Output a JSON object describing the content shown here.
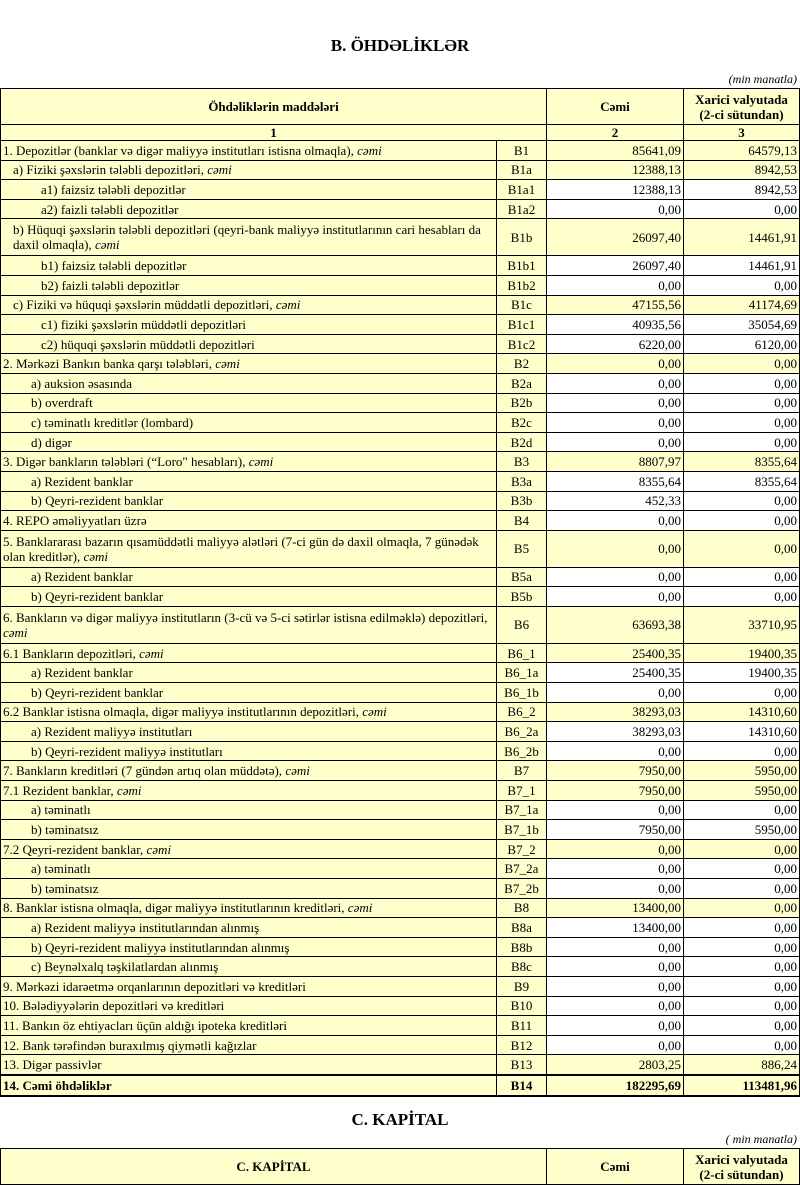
{
  "section_b": {
    "title": "B. ÖHDƏLİKLƏR",
    "unit": "(min manatla)",
    "headers": {
      "items": "Öhdəliklərin maddələri",
      "total": "Cəmi",
      "foreign": "Xarici valyutada (2-ci sütundan)",
      "n1": "1",
      "n2": "2",
      "n3": "3"
    },
    "rows": [
      {
        "label": "1. Depozitlər (banklar və digər maliyyə institutları istisna olmaqla), ",
        "suffix": "cəmi",
        "code": "B1",
        "total": "85641,09",
        "foreign": "64579,13",
        "level": 0,
        "highlight": true
      },
      {
        "label": "a)  Fiziki şəxslərin tələbli depozitləri, ",
        "suffix": "cəmi",
        "code": "B1a",
        "total": "12388,13",
        "foreign": "8942,53",
        "level": 1,
        "highlight": true
      },
      {
        "label": "a1) faizsiz tələbli depozitlər",
        "suffix": "",
        "code": "B1a1",
        "total": "12388,13",
        "foreign": "8942,53",
        "level": 2,
        "highlight": false
      },
      {
        "label": "a2) faizli tələbli depozitlər",
        "suffix": "",
        "code": "B1a2",
        "total": "0,00",
        "foreign": "0,00",
        "level": 2,
        "highlight": false
      },
      {
        "label": "b) Hüquqi şəxslərin tələbli depozitləri (qeyri-bank maliyyə institutlarının cari hesabları da daxil olmaqla), ",
        "suffix": "cəmi",
        "code": "B1b",
        "total": "26097,40",
        "foreign": "14461,91",
        "level": 1,
        "highlight": true,
        "double": true
      },
      {
        "label": "b1) faizsiz tələbli depozitlər",
        "suffix": "",
        "code": "B1b1",
        "total": "26097,40",
        "foreign": "14461,91",
        "level": 2,
        "highlight": false
      },
      {
        "label": "b2) faizli tələbli depozitlər",
        "suffix": "",
        "code": "B1b2",
        "total": "0,00",
        "foreign": "0,00",
        "level": 2,
        "highlight": false
      },
      {
        "label": "c) Fiziki və hüquqi şəxslərin müddətli depozitləri, ",
        "suffix": "cəmi",
        "code": "B1c",
        "total": "47155,56",
        "foreign": "41174,69",
        "level": 1,
        "highlight": true
      },
      {
        "label": "c1) fiziki şəxslərin müddətli depozitləri",
        "suffix": "",
        "code": "B1c1",
        "total": "40935,56",
        "foreign": "35054,69",
        "level": 2,
        "highlight": false
      },
      {
        "label": "c2) hüquqi şəxslərin müddətli depozitləri",
        "suffix": "",
        "code": "B1c2",
        "total": "6220,00",
        "foreign": "6120,00",
        "level": 2,
        "highlight": false
      },
      {
        "label": "2. Mərkəzi Bankın banka qarşı tələbləri, ",
        "suffix": "cəmi",
        "code": "B2",
        "total": "0,00",
        "foreign": "0,00",
        "level": 0,
        "highlight": true
      },
      {
        "label": "a) auksion əsasında",
        "suffix": "",
        "code": "B2a",
        "total": "0,00",
        "foreign": "0,00",
        "level": 1,
        "highlight": false
      },
      {
        "label": "b) overdraft",
        "suffix": "",
        "code": "B2b",
        "total": "0,00",
        "foreign": "0,00",
        "level": 1,
        "highlight": false
      },
      {
        "label": "c) təminatlı kreditlər (lombard)",
        "suffix": "",
        "code": "B2c",
        "total": "0,00",
        "foreign": "0,00",
        "level": 1,
        "highlight": false
      },
      {
        "label": "d) digər",
        "suffix": "",
        "code": "B2d",
        "total": "0,00",
        "foreign": "0,00",
        "level": 1,
        "highlight": false
      },
      {
        "label": "3. Digər bankların tələbləri (“Loro\" hesabları), ",
        "suffix": "cəmi",
        "code": "B3",
        "total": "8807,97",
        "foreign": "8355,64",
        "level": 0,
        "highlight": true
      },
      {
        "label": "a) Rezident banklar",
        "suffix": "",
        "code": "B3a",
        "total": "8355,64",
        "foreign": "8355,64",
        "level": 1,
        "highlight": false
      },
      {
        "label": "b) Qeyri-rezident banklar",
        "suffix": "",
        "code": "B3b",
        "total": "452,33",
        "foreign": "0,00",
        "level": 1,
        "highlight": false
      },
      {
        "label": "4. REPO əməliyyatları  üzrə",
        "suffix": "",
        "code": "B4",
        "total": "0,00",
        "foreign": "0,00",
        "level": 0,
        "highlight": false
      },
      {
        "label": "5. Banklararası bazarın qısamüddətli maliyyə alətləri (7-ci gün də daxil olmaqla, 7 günədək olan kreditlər), ",
        "suffix": "cəmi",
        "code": "B5",
        "total": "0,00",
        "foreign": "0,00",
        "level": 0,
        "highlight": true,
        "double": true
      },
      {
        "label": "a) Rezident banklar",
        "suffix": "",
        "code": "B5a",
        "total": "0,00",
        "foreign": "0,00",
        "level": 1,
        "highlight": false
      },
      {
        "label": "b) Qeyri-rezident banklar",
        "suffix": "",
        "code": "B5b",
        "total": "0,00",
        "foreign": "0,00",
        "level": 1,
        "highlight": false
      },
      {
        "label": "6. Bankların və digər maliyyə institutların (3-cü və 5-ci sətirlər istisna edilməklə) depozitləri, ",
        "suffix": "cəmi",
        "code": "B6",
        "total": "63693,38",
        "foreign": "33710,95",
        "level": 0,
        "highlight": true,
        "double": true
      },
      {
        "label": "6.1  Bankların depozitləri, ",
        "suffix": "cəmi",
        "code": "B6_1",
        "total": "25400,35",
        "foreign": "19400,35",
        "level": 0,
        "highlight": true
      },
      {
        "label": "a) Rezident banklar",
        "suffix": "",
        "code": "B6_1a",
        "total": "25400,35",
        "foreign": "19400,35",
        "level": 1,
        "highlight": false
      },
      {
        "label": "b) Qeyri-rezident banklar",
        "suffix": "",
        "code": "B6_1b",
        "total": "0,00",
        "foreign": "0,00",
        "level": 1,
        "highlight": false
      },
      {
        "label": "6.2 Banklar istisna olmaqla, digər maliyyə institutlarının depozitləri, ",
        "suffix": "cəmi",
        "code": "B6_2",
        "total": "38293,03",
        "foreign": "14310,60",
        "level": 0,
        "highlight": true
      },
      {
        "label": "a) Rezident maliyyə institutları",
        "suffix": "",
        "code": "B6_2a",
        "total": "38293,03",
        "foreign": "14310,60",
        "level": 1,
        "highlight": false
      },
      {
        "label": "b) Qeyri-rezident maliyyə institutları",
        "suffix": "",
        "code": "B6_2b",
        "total": "0,00",
        "foreign": "0,00",
        "level": 1,
        "highlight": false
      },
      {
        "label": "7. Bankların kreditləri (7 gündən artıq olan müddətə), ",
        "suffix": "cəmi",
        "code": "B7",
        "total": "7950,00",
        "foreign": "5950,00",
        "level": 0,
        "highlight": true
      },
      {
        "label": "7.1 Rezident banklar, ",
        "suffix": "cəmi",
        "code": "B7_1",
        "total": "7950,00",
        "foreign": "5950,00",
        "level": 0,
        "highlight": true
      },
      {
        "label": "a) təminatlı",
        "suffix": "",
        "code": "B7_1a",
        "total": "0,00",
        "foreign": "0,00",
        "level": 1,
        "highlight": false
      },
      {
        "label": "b) təminatsız",
        "suffix": "",
        "code": "B7_1b",
        "total": "7950,00",
        "foreign": "5950,00",
        "level": 1,
        "highlight": false
      },
      {
        "label": "7.2 Qeyri-rezident banklar, ",
        "suffix": "cəmi",
        "code": "B7_2",
        "total": "0,00",
        "foreign": "0,00",
        "level": 0,
        "highlight": true
      },
      {
        "label": "a) təminatlı",
        "suffix": "",
        "code": "B7_2a",
        "total": "0,00",
        "foreign": "0,00",
        "level": 1,
        "highlight": false
      },
      {
        "label": "b) təminatsız",
        "suffix": "",
        "code": "B7_2b",
        "total": "0,00",
        "foreign": "0,00",
        "level": 1,
        "highlight": false
      },
      {
        "label": "8. Banklar istisna olmaqla, digər maliyyə institutlarının kreditləri, ",
        "suffix": "cəmi",
        "code": "B8",
        "total": "13400,00",
        "foreign": "0,00",
        "level": 0,
        "highlight": true
      },
      {
        "label": "a) Rezident maliyyə institutlarından alınmış",
        "suffix": "",
        "code": "B8a",
        "total": "13400,00",
        "foreign": "0,00",
        "level": 1,
        "highlight": false
      },
      {
        "label": "b) Qeyri-rezident maliyyə institutlarından alınmış",
        "suffix": "",
        "code": "B8b",
        "total": "0,00",
        "foreign": "0,00",
        "level": 1,
        "highlight": false
      },
      {
        "label": "c) Beynəlxalq təşkilatlardan alınmış",
        "suffix": "",
        "code": "B8c",
        "total": "0,00",
        "foreign": "0,00",
        "level": 1,
        "highlight": false
      },
      {
        "label": "9. Mərkəzi idarəetmə orqanlarının depozitləri və kreditləri",
        "suffix": "",
        "code": "B9",
        "total": "0,00",
        "foreign": "0,00",
        "level": 0,
        "highlight": false
      },
      {
        "label": "10. Bələdiyyələrin depozitləri və kreditləri",
        "suffix": "",
        "code": "B10",
        "total": "0,00",
        "foreign": "0,00",
        "level": 0,
        "highlight": false
      },
      {
        "label": "11. Bankın öz ehtiyacları üçün aldığı ipoteka kreditləri",
        "suffix": "",
        "code": "B11",
        "total": "0,00",
        "foreign": "0,00",
        "level": 0,
        "highlight": false
      },
      {
        "label": "12. Bank tərəfindən buraxılmış qiymətli kağızlar",
        "suffix": "",
        "code": "B12",
        "total": "0,00",
        "foreign": "0,00",
        "level": 0,
        "highlight": false
      },
      {
        "label": "13. Digər passivlər",
        "suffix": "",
        "code": "B13",
        "total": "2803,25",
        "foreign": "886,24",
        "level": 0,
        "highlight": true
      },
      {
        "label": "14. Cəmi öhdəliklər",
        "suffix": "",
        "code": "B14",
        "total": "182295,69",
        "foreign": "113481,96",
        "level": 0,
        "highlight": true,
        "bold": true
      }
    ]
  },
  "section_c": {
    "title": "C. KAPİTAL",
    "unit": "( min manatla)",
    "headers": {
      "items": "C. KAPİTAL",
      "total": "Cəmi",
      "foreign": "Xarici valyutada (2-ci sütundan)"
    }
  }
}
